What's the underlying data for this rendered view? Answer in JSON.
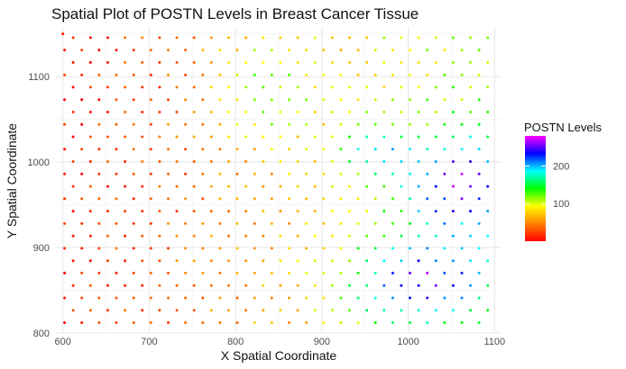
{
  "chart_data": {
    "type": "scatter",
    "title": "Spatial Plot of POSTN Levels in Breast Cancer Tissue",
    "xlabel": "X Spatial Coordinate",
    "ylabel": "Y Spatial Coordinate",
    "xlim": [
      592,
      1108
    ],
    "ylim": [
      802,
      1158
    ],
    "x_ticks": [
      600,
      700,
      800,
      900,
      1000,
      1100
    ],
    "y_ticks": [
      800,
      900,
      1000,
      1100
    ],
    "grid": true,
    "legend": {
      "title": "POSTN Levels",
      "placement": "right",
      "ticks": [
        100,
        200
      ],
      "range": [
        0,
        280
      ],
      "colors": [
        "#ff0000",
        "#ff8000",
        "#ffff00",
        "#00ff00",
        "#00ffff",
        "#0000ff",
        "#ff00ff"
      ]
    },
    "grid_spec": {
      "x_start": 602,
      "x_step": 20,
      "cols": 25,
      "y_start": 812,
      "y_step": 14.5,
      "rows": 24,
      "row_x_offset": 10
    },
    "level_model": {
      "base": 10,
      "x_gain": 0.22,
      "hotspots": [
        {
          "x": 1010,
          "y": 860,
          "sx": 55,
          "sy": 35,
          "amp": 150
        },
        {
          "x": 1060,
          "y": 975,
          "sx": 50,
          "sy": 40,
          "amp": 150
        },
        {
          "x": 960,
          "y": 1015,
          "sx": 30,
          "sy": 20,
          "amp": 90
        },
        {
          "x": 830,
          "y": 1085,
          "sx": 40,
          "sy": 40,
          "amp": 70
        }
      ]
    }
  }
}
